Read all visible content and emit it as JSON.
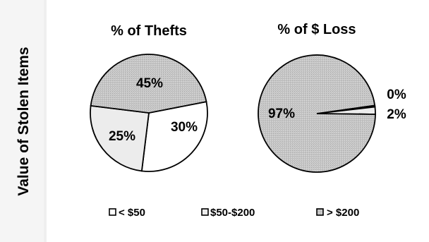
{
  "side_label": "Value of Stolen Items",
  "chart_data": [
    {
      "type": "pie",
      "title": "% of Thefts",
      "slices": [
        {
          "category": "< $50",
          "value": 30,
          "label": "30%"
        },
        {
          "category": "$50-$200",
          "value": 25,
          "label": "25%"
        },
        {
          "category": "> $200",
          "value": 45,
          "label": "45%"
        }
      ]
    },
    {
      "type": "pie",
      "title": "% of $ Loss",
      "slices": [
        {
          "category": "< $50",
          "value": 0.4,
          "label": "0%"
        },
        {
          "category": "$50-$200",
          "value": 2,
          "label": "2%"
        },
        {
          "category": "> $200",
          "value": 97,
          "label": "97%"
        }
      ]
    }
  ],
  "legend": {
    "placement": "bottom",
    "items": [
      {
        "label": "< $50",
        "color": "#ffffff"
      },
      {
        "label": "$50-$200",
        "color": "#ececec"
      },
      {
        "label": "> $200",
        "color": "#c8c8c8"
      }
    ]
  }
}
